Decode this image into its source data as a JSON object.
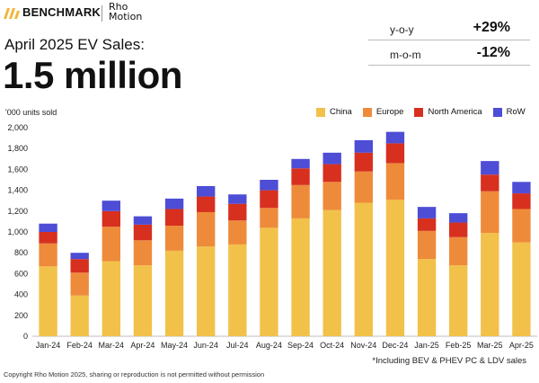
{
  "header": {
    "brand_name": "BENCHMARK",
    "partner_name": "Rho Motion",
    "partner_line1": "Rho",
    "partner_line2": "Motion"
  },
  "title": {
    "subtitle": "April 2025 EV Sales:",
    "value": "1.5 million"
  },
  "kpis": [
    {
      "label": "y-o-y",
      "value": "+29%"
    },
    {
      "label": "m-o-m",
      "value": "-12%"
    }
  ],
  "colors": {
    "China": "#F2C14A",
    "Europe": "#EE8B3A",
    "North America": "#D7301F",
    "RoW": "#4D4DD6"
  },
  "chart_data": {
    "type": "bar",
    "stacked": true,
    "ylabel": "'000 units sold",
    "ylim": [
      0,
      2000
    ],
    "yticks": [
      0,
      200,
      400,
      600,
      800,
      1000,
      1200,
      1400,
      1600,
      1800,
      2000
    ],
    "ytick_labels": [
      "0",
      "200",
      "400",
      "600",
      "800",
      "1,000",
      "1,200",
      "1,400",
      "1,600",
      "1,800",
      "2,000"
    ],
    "categories": [
      "Jan-24",
      "Feb-24",
      "Mar-24",
      "Apr-24",
      "May-24",
      "Jun-24",
      "Jul-24",
      "Aug-24",
      "Sep-24",
      "Oct-24",
      "Nov-24",
      "Dec-24",
      "Jan-25",
      "Feb-25",
      "Mar-25",
      "Apr-25"
    ],
    "series": [
      {
        "name": "China",
        "values": [
          670,
          390,
          720,
          680,
          820,
          860,
          880,
          1040,
          1130,
          1210,
          1280,
          1310,
          740,
          680,
          990,
          900
        ]
      },
      {
        "name": "Europe",
        "values": [
          220,
          220,
          330,
          240,
          240,
          330,
          230,
          190,
          320,
          270,
          300,
          350,
          270,
          270,
          400,
          320
        ]
      },
      {
        "name": "North America",
        "values": [
          110,
          130,
          150,
          150,
          160,
          150,
          160,
          170,
          160,
          170,
          180,
          190,
          120,
          140,
          160,
          150
        ]
      },
      {
        "name": "RoW",
        "values": [
          80,
          60,
          100,
          80,
          100,
          100,
          90,
          100,
          90,
          110,
          120,
          110,
          110,
          90,
          130,
          110
        ]
      }
    ],
    "footnote": "*Including BEV & PHEV PC & LDV sales"
  },
  "copyright": "Copyright Rho Motion 2025, sharing or reproduction is not permitted without permission"
}
